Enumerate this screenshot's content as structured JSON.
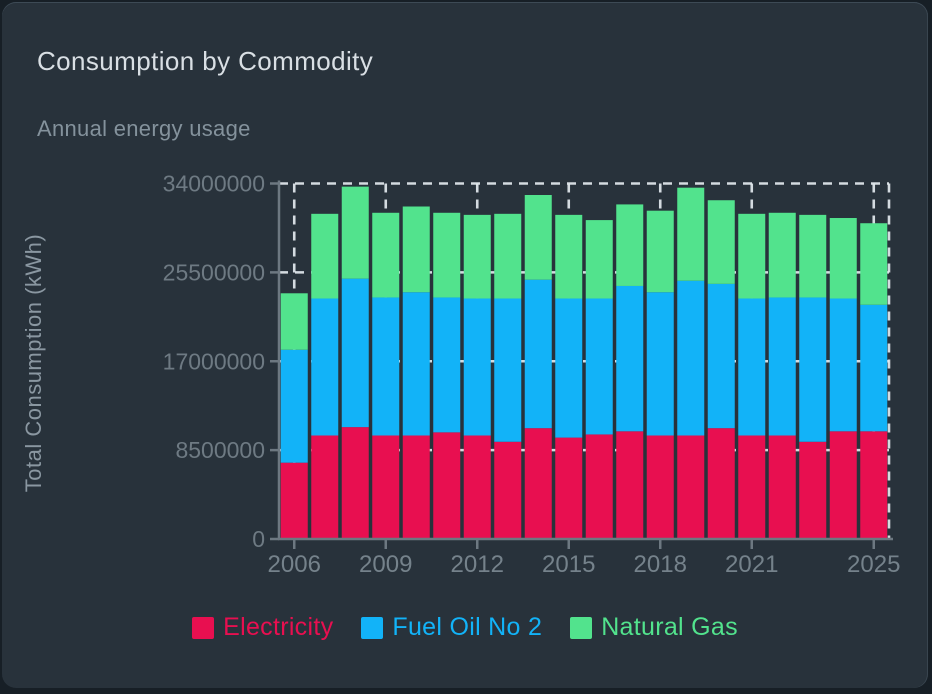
{
  "card": {
    "title": "Consumption by Commodity",
    "subtitle": "Annual energy usage"
  },
  "chart_data": {
    "type": "bar",
    "stacked": true,
    "title": "Consumption by Commodity",
    "subtitle": "Annual energy usage",
    "xlabel": "",
    "ylabel": "Total Consumption (kWh)",
    "ylim": [
      0,
      34000000
    ],
    "grid": "dashed-white-behind-bars",
    "legend_position": "bottom-center",
    "categories": [
      2006,
      2007,
      2008,
      2009,
      2010,
      2011,
      2012,
      2013,
      2014,
      2015,
      2016,
      2017,
      2018,
      2019,
      2020,
      2021,
      2022,
      2023,
      2024,
      2025
    ],
    "y_ticks": [
      0,
      8500000,
      17000000,
      25500000,
      34000000
    ],
    "y_tick_labels": [
      "0",
      "8500000",
      "17000000",
      "25500000",
      "34000000"
    ],
    "x_labeled_years": [
      2006,
      2009,
      2012,
      2015,
      2018,
      2021,
      2025
    ],
    "x_tick_labels": [
      "2006",
      "2009",
      "2012",
      "2015",
      "2018",
      "2021",
      "2025"
    ],
    "series": [
      {
        "name": "Electricity",
        "color": "#e80f50",
        "values": [
          7300000,
          9900000,
          10700000,
          9900000,
          9900000,
          10200000,
          9900000,
          9300000,
          10600000,
          9700000,
          10000000,
          10300000,
          9900000,
          9900000,
          10600000,
          9900000,
          9900000,
          9300000,
          10300000,
          10300000
        ]
      },
      {
        "name": "Fuel Oil No 2",
        "color": "#12b3f8",
        "values": [
          10800000,
          13100000,
          14200000,
          13200000,
          13700000,
          12900000,
          13100000,
          13700000,
          14200000,
          13300000,
          13000000,
          13900000,
          13700000,
          14800000,
          13800000,
          13100000,
          13200000,
          13800000,
          12700000,
          12100000
        ]
      },
      {
        "name": "Natural Gas",
        "color": "#52e38d",
        "values": [
          5400000,
          8100000,
          8800000,
          8100000,
          8200000,
          8100000,
          8000000,
          8100000,
          8100000,
          8000000,
          7500000,
          7800000,
          7800000,
          8900000,
          8000000,
          8100000,
          8100000,
          7900000,
          7700000,
          7800000
        ]
      }
    ]
  },
  "legend": {
    "items": [
      {
        "label": "Electricity",
        "color": "#e80f50"
      },
      {
        "label": "Fuel Oil No 2",
        "color": "#12b3f8"
      },
      {
        "label": "Natural Gas",
        "color": "#52e38d"
      }
    ]
  },
  "colors": {
    "card_bg": "#28323b",
    "page_bg": "#171f26",
    "axis": "#6d7881",
    "gridline": "#e3eaee",
    "tick_text": "#6e7a83",
    "title_text": "#d9dfe4",
    "subtitle_text": "#84929c"
  }
}
